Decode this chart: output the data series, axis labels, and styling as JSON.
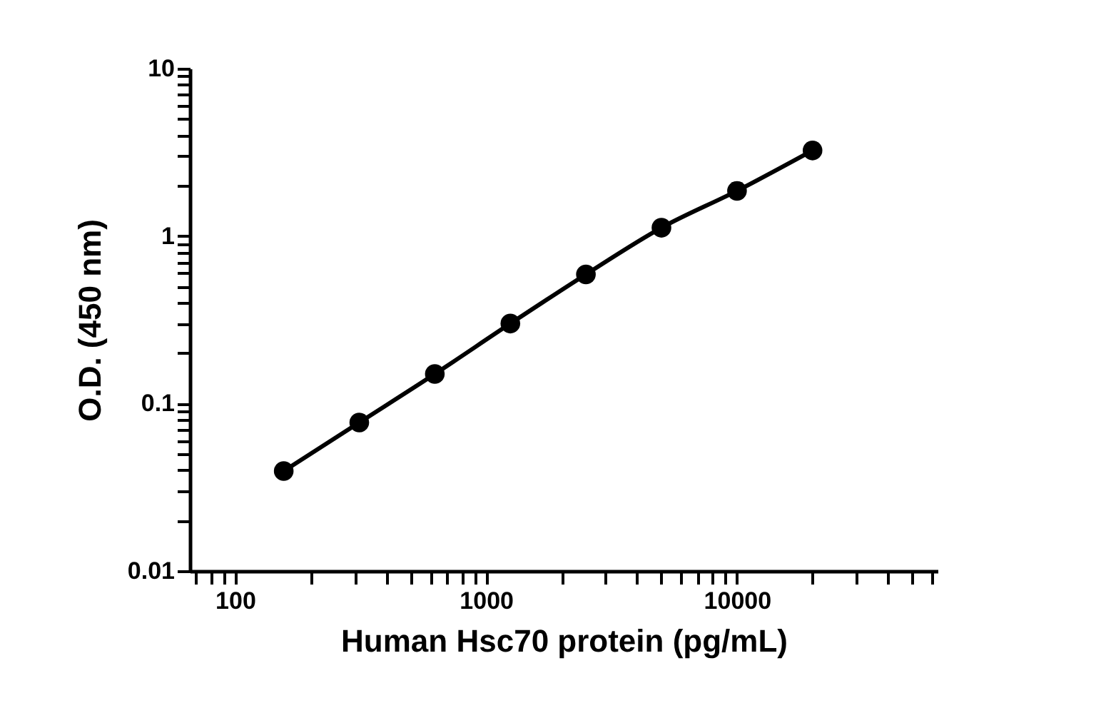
{
  "chart_data": {
    "type": "line",
    "xlabel": "Human Hsc70 protein (pg/mL)",
    "ylabel": "O.D. (450 nm)",
    "x": [
      156.25,
      312.5,
      625,
      1250,
      2500,
      5000,
      10000,
      20000
    ],
    "series": [
      {
        "color": "#000000",
        "values": [
          0.0395,
          0.077,
          0.15,
          0.3,
          0.59,
          1.12,
          1.86,
          3.24
        ]
      }
    ],
    "log": "xy",
    "xlim": [
      66,
      63000
    ],
    "ylim": [
      0.01,
      10
    ],
    "xticks": [
      {
        "value": 70,
        "label": null
      },
      {
        "value": 80,
        "label": null
      },
      {
        "value": 90,
        "label": null
      },
      100,
      {
        "value": 200,
        "label": null
      },
      {
        "value": 300,
        "label": null
      },
      {
        "value": 400,
        "label": null
      },
      {
        "value": 500,
        "label": null
      },
      {
        "value": 600,
        "label": null
      },
      {
        "value": 700,
        "label": null
      },
      {
        "value": 800,
        "label": null
      },
      {
        "value": 900,
        "label": null
      },
      1000,
      {
        "value": 2000,
        "label": null
      },
      {
        "value": 3000,
        "label": null
      },
      {
        "value": 4000,
        "label": null
      },
      {
        "value": 5000,
        "label": null
      },
      {
        "value": 6000,
        "label": null
      },
      {
        "value": 7000,
        "label": null
      },
      {
        "value": 8000,
        "label": null
      },
      {
        "value": 9000,
        "label": null
      },
      10000,
      {
        "value": 20000,
        "label": null
      },
      {
        "value": 30000,
        "label": null
      },
      {
        "value": 40000,
        "label": null
      },
      {
        "value": 50000,
        "label": null
      },
      {
        "value": 60000,
        "label": null
      }
    ],
    "yticks": [
      0.01,
      {
        "value": 0.02,
        "label": null
      },
      {
        "value": 0.03,
        "label": null
      },
      {
        "value": 0.04,
        "label": null
      },
      {
        "value": 0.05,
        "label": null
      },
      {
        "value": 0.06,
        "label": null
      },
      {
        "value": 0.07,
        "label": null
      },
      {
        "value": 0.08,
        "label": null
      },
      {
        "value": 0.09,
        "label": null
      },
      0.1,
      {
        "value": 0.2,
        "label": null
      },
      {
        "value": 0.3,
        "label": null
      },
      {
        "value": 0.4,
        "label": null
      },
      {
        "value": 0.5,
        "label": null
      },
      {
        "value": 0.6,
        "label": null
      },
      {
        "value": 0.7,
        "label": null
      },
      {
        "value": 0.8,
        "label": null
      },
      {
        "value": 0.9,
        "label": null
      },
      1,
      {
        "value": 2,
        "label": null
      },
      {
        "value": 3,
        "label": null
      },
      {
        "value": 4,
        "label": null
      },
      {
        "value": 5,
        "label": null
      },
      {
        "value": 6,
        "label": null
      },
      {
        "value": 7,
        "label": null
      },
      {
        "value": 8,
        "label": null
      },
      {
        "value": 9,
        "label": null
      },
      10
    ],
    "marker": "circle",
    "line_style": "solid",
    "grid": false
  }
}
